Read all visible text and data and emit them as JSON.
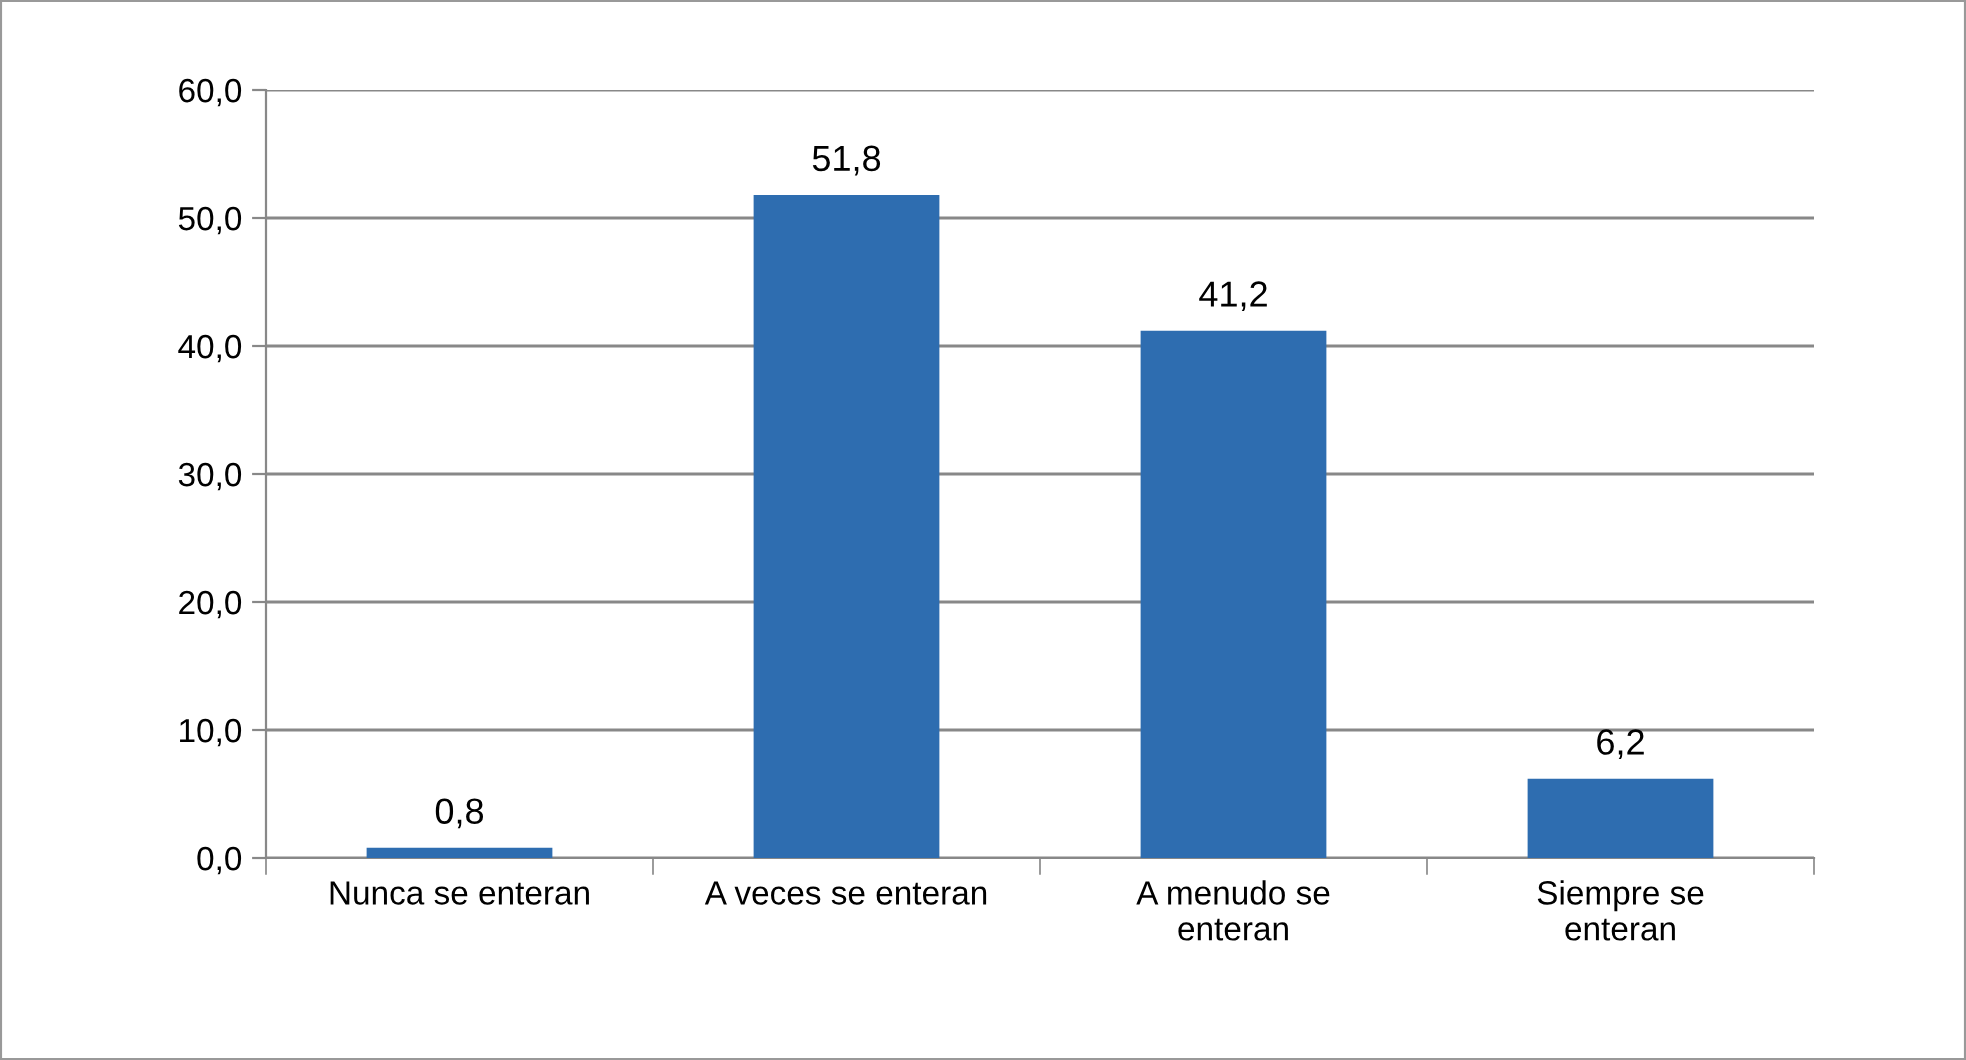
{
  "chart_data": {
    "type": "bar",
    "categories": [
      "Nunca se enteran",
      "A veces se enteran",
      "A menudo se\nenteran",
      "Siempre se\nenteran"
    ],
    "values": [
      0.8,
      51.8,
      41.2,
      6.2
    ],
    "value_labels": [
      "0,8",
      "51,8",
      "41,2",
      "6,2"
    ],
    "color": "#2e6db0",
    "ylim": [
      0,
      60
    ],
    "yticks": [
      {
        "value": 0,
        "label": "0,0"
      },
      {
        "value": 10,
        "label": "10,0"
      },
      {
        "value": 20,
        "label": "20,0"
      },
      {
        "value": 30,
        "label": "30,0"
      },
      {
        "value": 40,
        "label": "40,0"
      },
      {
        "value": 50,
        "label": "50,0"
      },
      {
        "value": 60,
        "label": "60,0"
      }
    ],
    "grid": "y",
    "legend": false
  }
}
